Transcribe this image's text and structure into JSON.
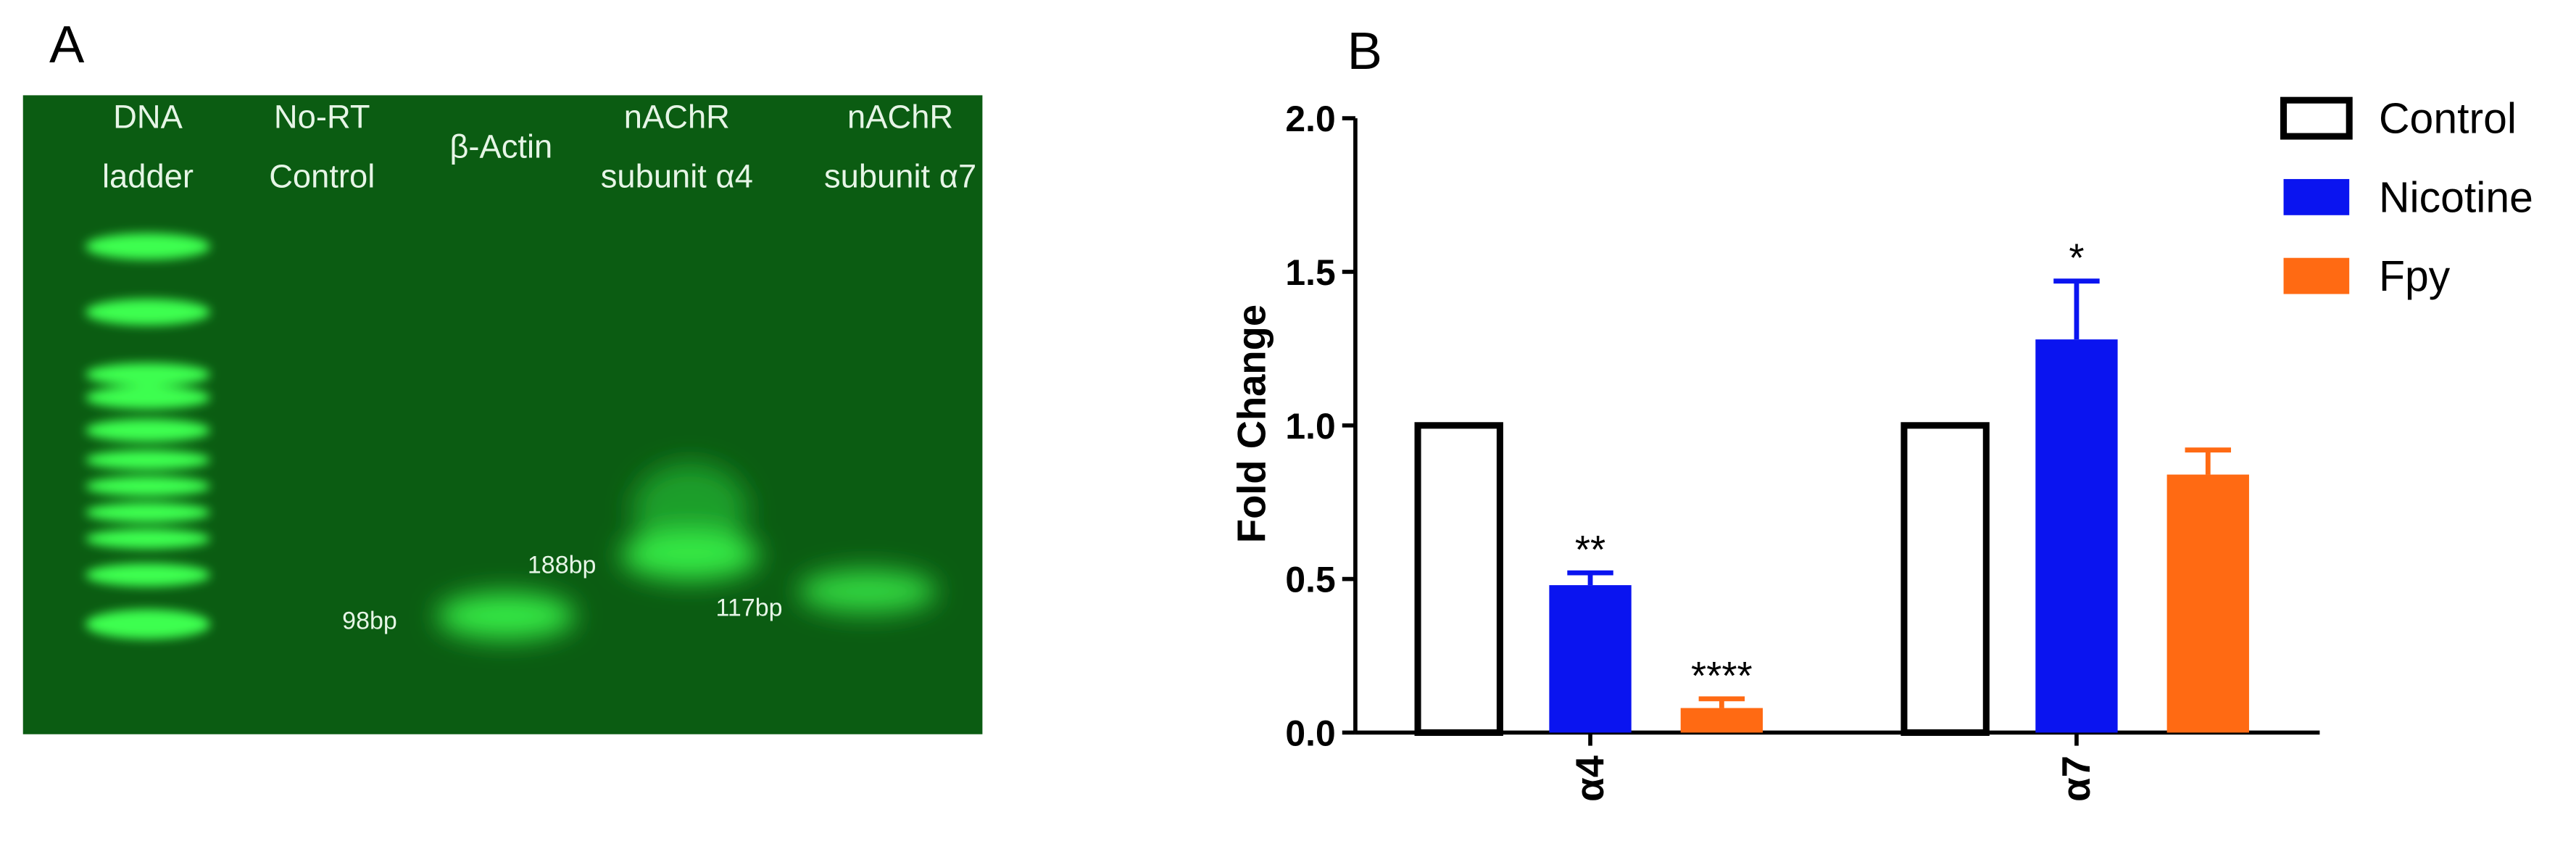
{
  "panel_a": {
    "label": "A",
    "lanes": [
      [
        "DNA",
        "ladder"
      ],
      [
        "No-RT",
        "Control"
      ],
      [
        "β-Actin"
      ],
      [
        "nAChR",
        "subunit α4"
      ],
      [
        "nAChR",
        "subunit α7"
      ]
    ],
    "band_labels": [
      "98bp",
      "188bp",
      "117bp"
    ]
  },
  "chart_data": {
    "type": "bar",
    "panel_label": "B",
    "y_label": "Fold Change",
    "categories": [
      "α4",
      "α7"
    ],
    "series": [
      {
        "name": "Control",
        "color": "#ffffff",
        "edgecolor": "#000000",
        "values": [
          1.0,
          1.0
        ]
      },
      {
        "name": "Nicotine",
        "color": "#0a14f0",
        "values": [
          0.48,
          1.28
        ],
        "errors": [
          0.04,
          0.19
        ],
        "significance": [
          "**",
          "*"
        ]
      },
      {
        "name": "Fpy",
        "color": "#ff6a13",
        "values": [
          0.08,
          0.84
        ],
        "errors": [
          0.03,
          0.08
        ],
        "significance": [
          "****",
          null
        ]
      }
    ],
    "ylim": [
      0,
      2
    ],
    "yticks": [
      {
        "value": 0,
        "label": "0.0"
      },
      0.5,
      {
        "value": 1,
        "label": "1.0"
      },
      1.5,
      {
        "value": 2,
        "label": "2.0"
      }
    ],
    "legend": "upper right"
  }
}
